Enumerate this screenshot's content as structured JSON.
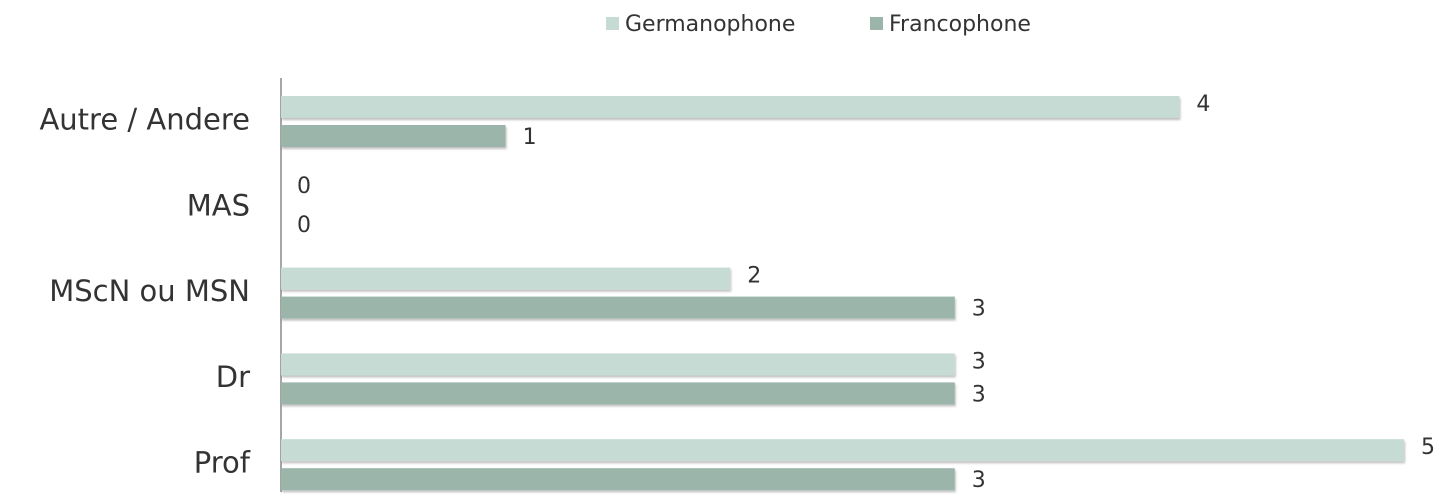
{
  "chart_data": {
    "type": "bar",
    "orientation": "horizontal",
    "categories": [
      "Autre / Andere",
      "MAS",
      "MScN ou MSN",
      "Dr",
      "Prof"
    ],
    "series": [
      {
        "name": "Germanophone",
        "color": "#c5dbd3",
        "values": [
          4,
          0,
          2,
          3,
          5
        ]
      },
      {
        "name": "Francophone",
        "color": "#9bb5aa",
        "values": [
          1,
          0,
          3,
          3,
          3
        ]
      }
    ],
    "legend": "top"
  }
}
